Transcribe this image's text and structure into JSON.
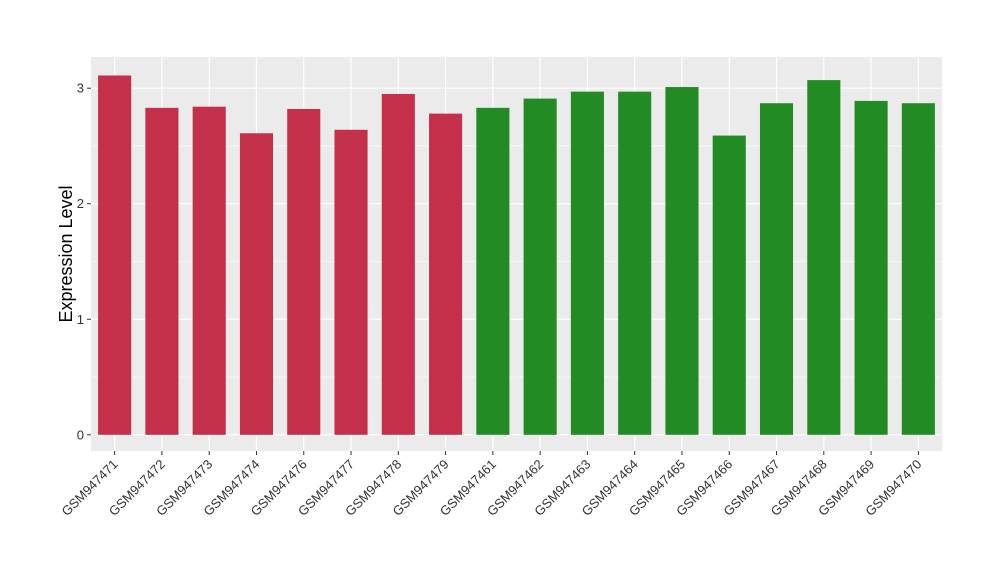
{
  "chart_data": {
    "type": "bar",
    "title": "",
    "xlabel": "",
    "ylabel": "Expression Level",
    "ylim": [
      -0.14,
      3.27
    ],
    "yticks": [
      0,
      1,
      2,
      3
    ],
    "grid": true,
    "legend": "none",
    "panel_color": "#ebebeb",
    "grid_color": "#ffffff",
    "categories": [
      "GSM947471",
      "GSM947472",
      "GSM947473",
      "GSM947474",
      "GSM947476",
      "GSM947477",
      "GSM947478",
      "GSM947479",
      "GSM947461",
      "GSM947462",
      "GSM947463",
      "GSM947464",
      "GSM947465",
      "GSM947466",
      "GSM947467",
      "GSM947468",
      "GSM947469",
      "GSM947470"
    ],
    "values": [
      3.11,
      2.83,
      2.84,
      2.61,
      2.82,
      2.64,
      2.95,
      2.78,
      2.83,
      2.91,
      2.97,
      2.97,
      3.01,
      2.59,
      2.87,
      3.07,
      2.89,
      2.87
    ],
    "colors": [
      "#c43049",
      "#c43049",
      "#c43049",
      "#c43049",
      "#c43049",
      "#c43049",
      "#c43049",
      "#c43049",
      "#238b23",
      "#238b23",
      "#238b23",
      "#238b23",
      "#238b23",
      "#238b23",
      "#238b23",
      "#238b23",
      "#238b23",
      "#238b23"
    ]
  }
}
